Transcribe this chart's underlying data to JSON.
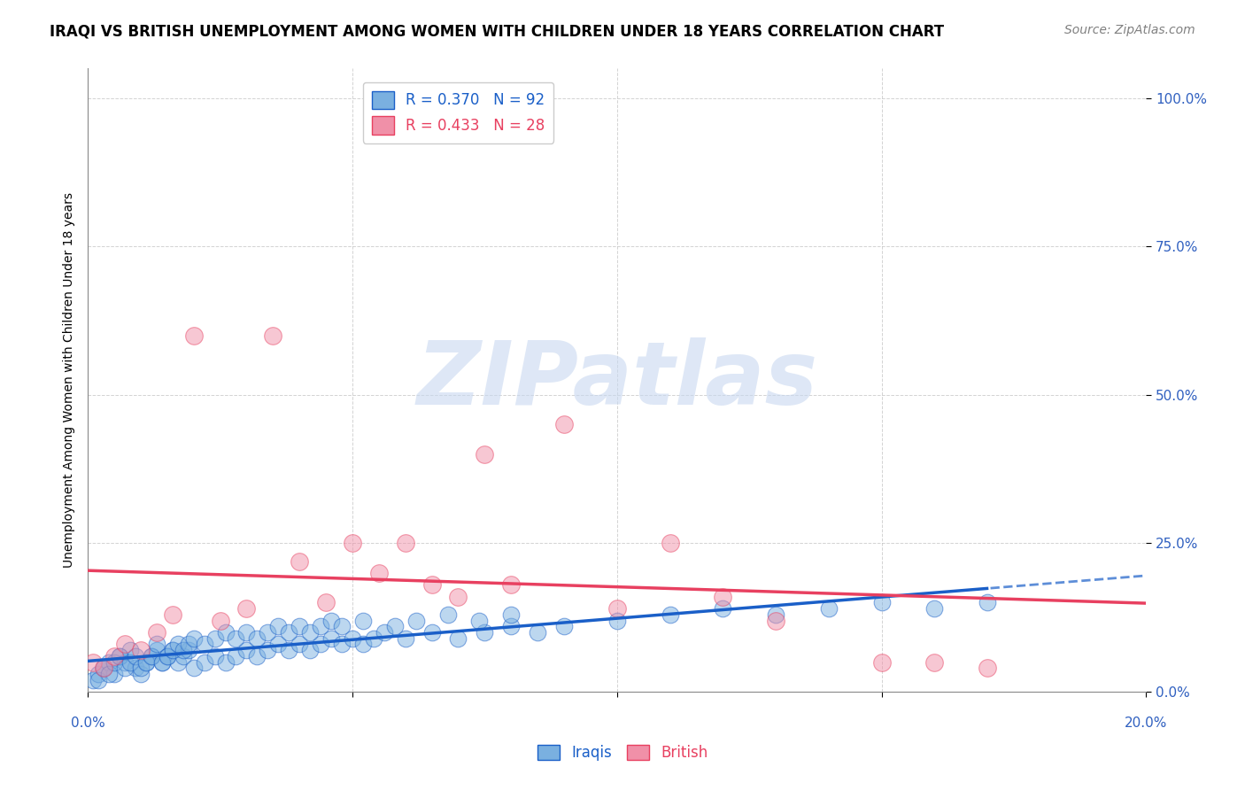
{
  "title": "IRAQI VS BRITISH UNEMPLOYMENT AMONG WOMEN WITH CHILDREN UNDER 18 YEARS CORRELATION CHART",
  "source": "Source: ZipAtlas.com",
  "ylabel": "Unemployment Among Women with Children Under 18 years",
  "xlim": [
    0.0,
    0.2
  ],
  "ylim": [
    0.0,
    1.05
  ],
  "legend_entries": [
    {
      "label": "R = 0.370   N = 92",
      "color": "#a8c8f0"
    },
    {
      "label": "R = 0.433   N = 28",
      "color": "#f8b8c8"
    }
  ],
  "iraqi_color": "#7ab0e0",
  "british_color": "#f090a8",
  "iraqi_line_color": "#1a5fc8",
  "british_line_color": "#e84060",
  "watermark": "ZIPatlas",
  "watermark_color": "#c8d8f0",
  "background_color": "#ffffff",
  "grid_color": "#c0c0c0",
  "iraqi_x": [
    0.001,
    0.002,
    0.003,
    0.002,
    0.004,
    0.005,
    0.003,
    0.006,
    0.007,
    0.004,
    0.008,
    0.009,
    0.005,
    0.01,
    0.006,
    0.011,
    0.007,
    0.012,
    0.008,
    0.013,
    0.009,
    0.014,
    0.01,
    0.015,
    0.011,
    0.016,
    0.012,
    0.017,
    0.013,
    0.018,
    0.014,
    0.019,
    0.015,
    0.02,
    0.016,
    0.022,
    0.017,
    0.024,
    0.018,
    0.026,
    0.019,
    0.028,
    0.02,
    0.03,
    0.022,
    0.032,
    0.024,
    0.034,
    0.026,
    0.036,
    0.028,
    0.038,
    0.03,
    0.04,
    0.032,
    0.042,
    0.034,
    0.044,
    0.036,
    0.046,
    0.038,
    0.048,
    0.04,
    0.05,
    0.042,
    0.052,
    0.044,
    0.054,
    0.046,
    0.056,
    0.048,
    0.06,
    0.052,
    0.065,
    0.058,
    0.07,
    0.062,
    0.075,
    0.068,
    0.08,
    0.074,
    0.085,
    0.08,
    0.09,
    0.1,
    0.11,
    0.12,
    0.13,
    0.14,
    0.15,
    0.16,
    0.17
  ],
  "iraqi_y": [
    0.02,
    0.03,
    0.04,
    0.02,
    0.05,
    0.03,
    0.04,
    0.06,
    0.05,
    0.03,
    0.07,
    0.04,
    0.05,
    0.03,
    0.06,
    0.05,
    0.04,
    0.06,
    0.05,
    0.07,
    0.06,
    0.05,
    0.04,
    0.06,
    0.05,
    0.07,
    0.06,
    0.05,
    0.08,
    0.06,
    0.05,
    0.07,
    0.06,
    0.04,
    0.07,
    0.05,
    0.08,
    0.06,
    0.07,
    0.05,
    0.08,
    0.06,
    0.09,
    0.07,
    0.08,
    0.06,
    0.09,
    0.07,
    0.1,
    0.08,
    0.09,
    0.07,
    0.1,
    0.08,
    0.09,
    0.07,
    0.1,
    0.08,
    0.11,
    0.09,
    0.1,
    0.08,
    0.11,
    0.09,
    0.1,
    0.08,
    0.11,
    0.09,
    0.12,
    0.1,
    0.11,
    0.09,
    0.12,
    0.1,
    0.11,
    0.09,
    0.12,
    0.1,
    0.13,
    0.11,
    0.12,
    0.1,
    0.13,
    0.11,
    0.12,
    0.13,
    0.14,
    0.13,
    0.14,
    0.15,
    0.14,
    0.15
  ],
  "british_x": [
    0.001,
    0.003,
    0.005,
    0.007,
    0.01,
    0.013,
    0.016,
    0.02,
    0.025,
    0.03,
    0.035,
    0.04,
    0.045,
    0.05,
    0.055,
    0.06,
    0.065,
    0.07,
    0.075,
    0.08,
    0.09,
    0.1,
    0.11,
    0.12,
    0.13,
    0.15,
    0.16,
    0.17
  ],
  "british_y": [
    0.05,
    0.04,
    0.06,
    0.08,
    0.07,
    0.1,
    0.13,
    0.6,
    0.12,
    0.14,
    0.6,
    0.22,
    0.15,
    0.25,
    0.2,
    0.25,
    0.18,
    0.16,
    0.4,
    0.18,
    0.45,
    0.14,
    0.25,
    0.16,
    0.12,
    0.05,
    0.05,
    0.04
  ],
  "title_fontsize": 12,
  "source_fontsize": 10,
  "tick_label_fontsize": 11,
  "ylabel_fontsize": 10,
  "legend_fontsize": 12,
  "watermark_fontsize": 72,
  "tick_label_color": "#3060c0"
}
